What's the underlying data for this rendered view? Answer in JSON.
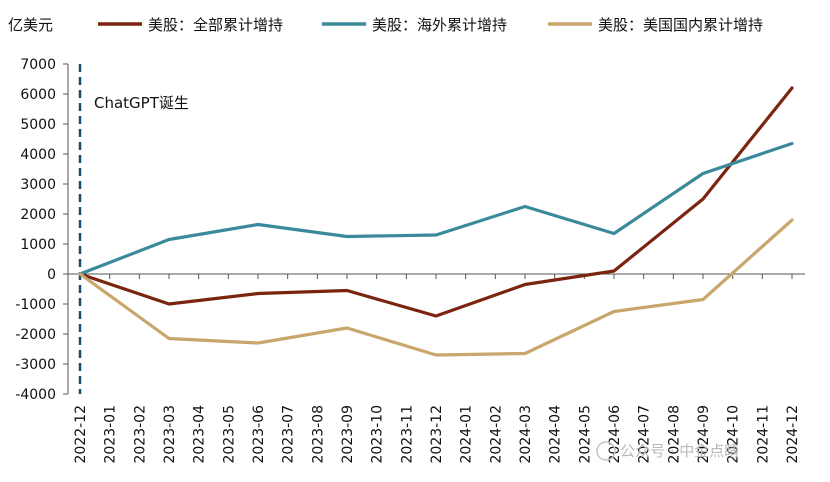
{
  "watermark": "公众号 · 中金点睛",
  "chart_data": {
    "type": "line",
    "unit_label": "亿美元",
    "annotation": "ChatGPT诞生",
    "annotation_x": "2022-12",
    "x": [
      "2022-12",
      "2023-01",
      "2023-02",
      "2023-03",
      "2023-04",
      "2023-05",
      "2023-06",
      "2023-07",
      "2023-08",
      "2023-09",
      "2023-10",
      "2023-11",
      "2023-12",
      "2024-01",
      "2024-02",
      "2024-03",
      "2024-04",
      "2024-05",
      "2024-06",
      "2024-07",
      "2024-08",
      "2024-09",
      "2024-10",
      "2024-11",
      "2024-12"
    ],
    "ylim": [
      -4000,
      7000
    ],
    "yticks": [
      7000,
      6000,
      5000,
      4000,
      3000,
      2000,
      1000,
      0,
      -1000,
      -2000,
      -3000,
      -4000
    ],
    "grid": false,
    "legend_position": "top",
    "series": [
      {
        "name": "美股：全部累计增持",
        "color": "#7B2410",
        "points": [
          [
            "2022-12",
            0
          ],
          [
            "2023-03",
            -1000
          ],
          [
            "2023-06",
            -650
          ],
          [
            "2023-09",
            -550
          ],
          [
            "2023-12",
            -1400
          ],
          [
            "2024-03",
            -350
          ],
          [
            "2024-06",
            100
          ],
          [
            "2024-09",
            2500
          ],
          [
            "2024-12",
            6200
          ]
        ]
      },
      {
        "name": "美股：海外累计增持",
        "color": "#3A8A9C",
        "points": [
          [
            "2022-12",
            0
          ],
          [
            "2023-03",
            1150
          ],
          [
            "2023-06",
            1650
          ],
          [
            "2023-09",
            1250
          ],
          [
            "2023-12",
            1300
          ],
          [
            "2024-03",
            2250
          ],
          [
            "2024-06",
            1350
          ],
          [
            "2024-09",
            3350
          ],
          [
            "2024-12",
            4350
          ]
        ]
      },
      {
        "name": "美股：美国国内累计增持",
        "color": "#C9A66B",
        "points": [
          [
            "2022-12",
            0
          ],
          [
            "2023-03",
            -2150
          ],
          [
            "2023-06",
            -2300
          ],
          [
            "2023-09",
            -1800
          ],
          [
            "2023-12",
            -2700
          ],
          [
            "2024-03",
            -2650
          ],
          [
            "2024-06",
            -1250
          ],
          [
            "2024-09",
            -850
          ],
          [
            "2024-12",
            1800
          ]
        ]
      }
    ]
  }
}
